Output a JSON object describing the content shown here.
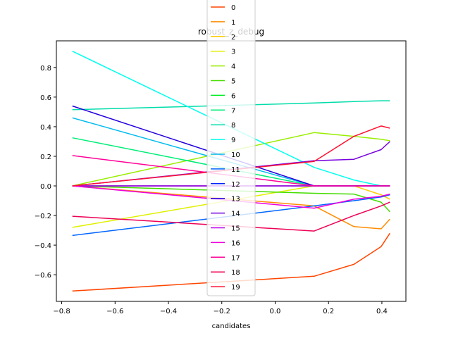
{
  "chart_data": {
    "type": "line",
    "title": "robust_z_debug",
    "xlabel": "candidates",
    "ylabel": "",
    "xlim": [
      -0.82,
      0.49
    ],
    "ylim": [
      -0.78,
      0.98
    ],
    "xticks": [
      -0.8,
      -0.6,
      -0.4,
      -0.2,
      0.0,
      0.2,
      0.4
    ],
    "xtick_labels": [
      "−0.8",
      "−0.6",
      "−0.4",
      "−0.2",
      "0.0",
      "0.2",
      "0.4"
    ],
    "yticks": [
      -0.6,
      -0.4,
      -0.2,
      0.0,
      0.2,
      0.4,
      0.6,
      0.8
    ],
    "ytick_labels": [
      "−0.6",
      "−0.4",
      "−0.2",
      "0.0",
      "0.2",
      "0.4",
      "0.6",
      "0.8"
    ],
    "grid": false,
    "legend_position": "top-center",
    "x": [
      -0.76,
      0.146,
      0.295,
      0.397,
      0.43
    ],
    "series": [
      {
        "name": "0",
        "color": "#ff4500",
        "values": [
          -0.71,
          -0.61,
          -0.53,
          -0.41,
          -0.32
        ]
      },
      {
        "name": "1",
        "color": "#ff8c00",
        "values": [
          0.0,
          -0.135,
          -0.275,
          -0.29,
          -0.225
        ]
      },
      {
        "name": "2",
        "color": "#ffcc00",
        "values": [
          0.0,
          0.0,
          0.0,
          -0.06,
          -0.09
        ]
      },
      {
        "name": "3",
        "color": "#e0f000",
        "values": [
          -0.28,
          0.0,
          0.0,
          0.0,
          0.0
        ]
      },
      {
        "name": "4",
        "color": "#99ee00",
        "values": [
          0.0,
          0.36,
          0.335,
          0.315,
          0.305
        ]
      },
      {
        "name": "5",
        "color": "#44dd00",
        "values": [
          0.0,
          -0.05,
          -0.055,
          -0.11,
          -0.175
        ]
      },
      {
        "name": "6",
        "color": "#00ee22",
        "values": [
          0.0,
          0.0,
          0.0,
          0.0,
          0.0
        ]
      },
      {
        "name": "7",
        "color": "#00ee77",
        "values": [
          0.325,
          0.0,
          0.0,
          0.0,
          0.0
        ]
      },
      {
        "name": "8",
        "color": "#00ddaa",
        "values": [
          0.515,
          0.56,
          0.57,
          0.575,
          0.575
        ]
      },
      {
        "name": "9",
        "color": "#00ffee",
        "values": [
          0.91,
          0.125,
          0.04,
          0.0,
          0.0
        ]
      },
      {
        "name": "10",
        "color": "#00bbee",
        "values": [
          0.46,
          0.0,
          0.0,
          0.0,
          0.0
        ]
      },
      {
        "name": "11",
        "color": "#0066ff",
        "values": [
          -0.335,
          -0.135,
          -0.1,
          -0.075,
          -0.06
        ]
      },
      {
        "name": "12",
        "color": "#0022ff",
        "values": [
          0.0,
          0.0,
          0.0,
          0.0,
          0.0
        ]
      },
      {
        "name": "13",
        "color": "#2200dd",
        "values": [
          0.54,
          0.0,
          0.0,
          0.0,
          0.0
        ]
      },
      {
        "name": "14",
        "color": "#7700dd",
        "values": [
          0.0,
          0.17,
          0.18,
          0.245,
          0.3
        ]
      },
      {
        "name": "15",
        "color": "#bb00ee",
        "values": [
          0.0,
          0.0,
          0.0,
          0.0,
          0.0
        ]
      },
      {
        "name": "16",
        "color": "#ee00dd",
        "values": [
          0.0,
          -0.15,
          -0.09,
          -0.07,
          -0.055
        ]
      },
      {
        "name": "17",
        "color": "#ff0099",
        "values": [
          0.205,
          0.0,
          0.0,
          0.0,
          0.0
        ]
      },
      {
        "name": "18",
        "color": "#ee0055",
        "values": [
          -0.205,
          -0.305,
          -0.2,
          -0.135,
          -0.11
        ]
      },
      {
        "name": "19",
        "color": "#ff1133",
        "values": [
          0.0,
          0.165,
          0.335,
          0.405,
          0.39
        ]
      }
    ]
  }
}
